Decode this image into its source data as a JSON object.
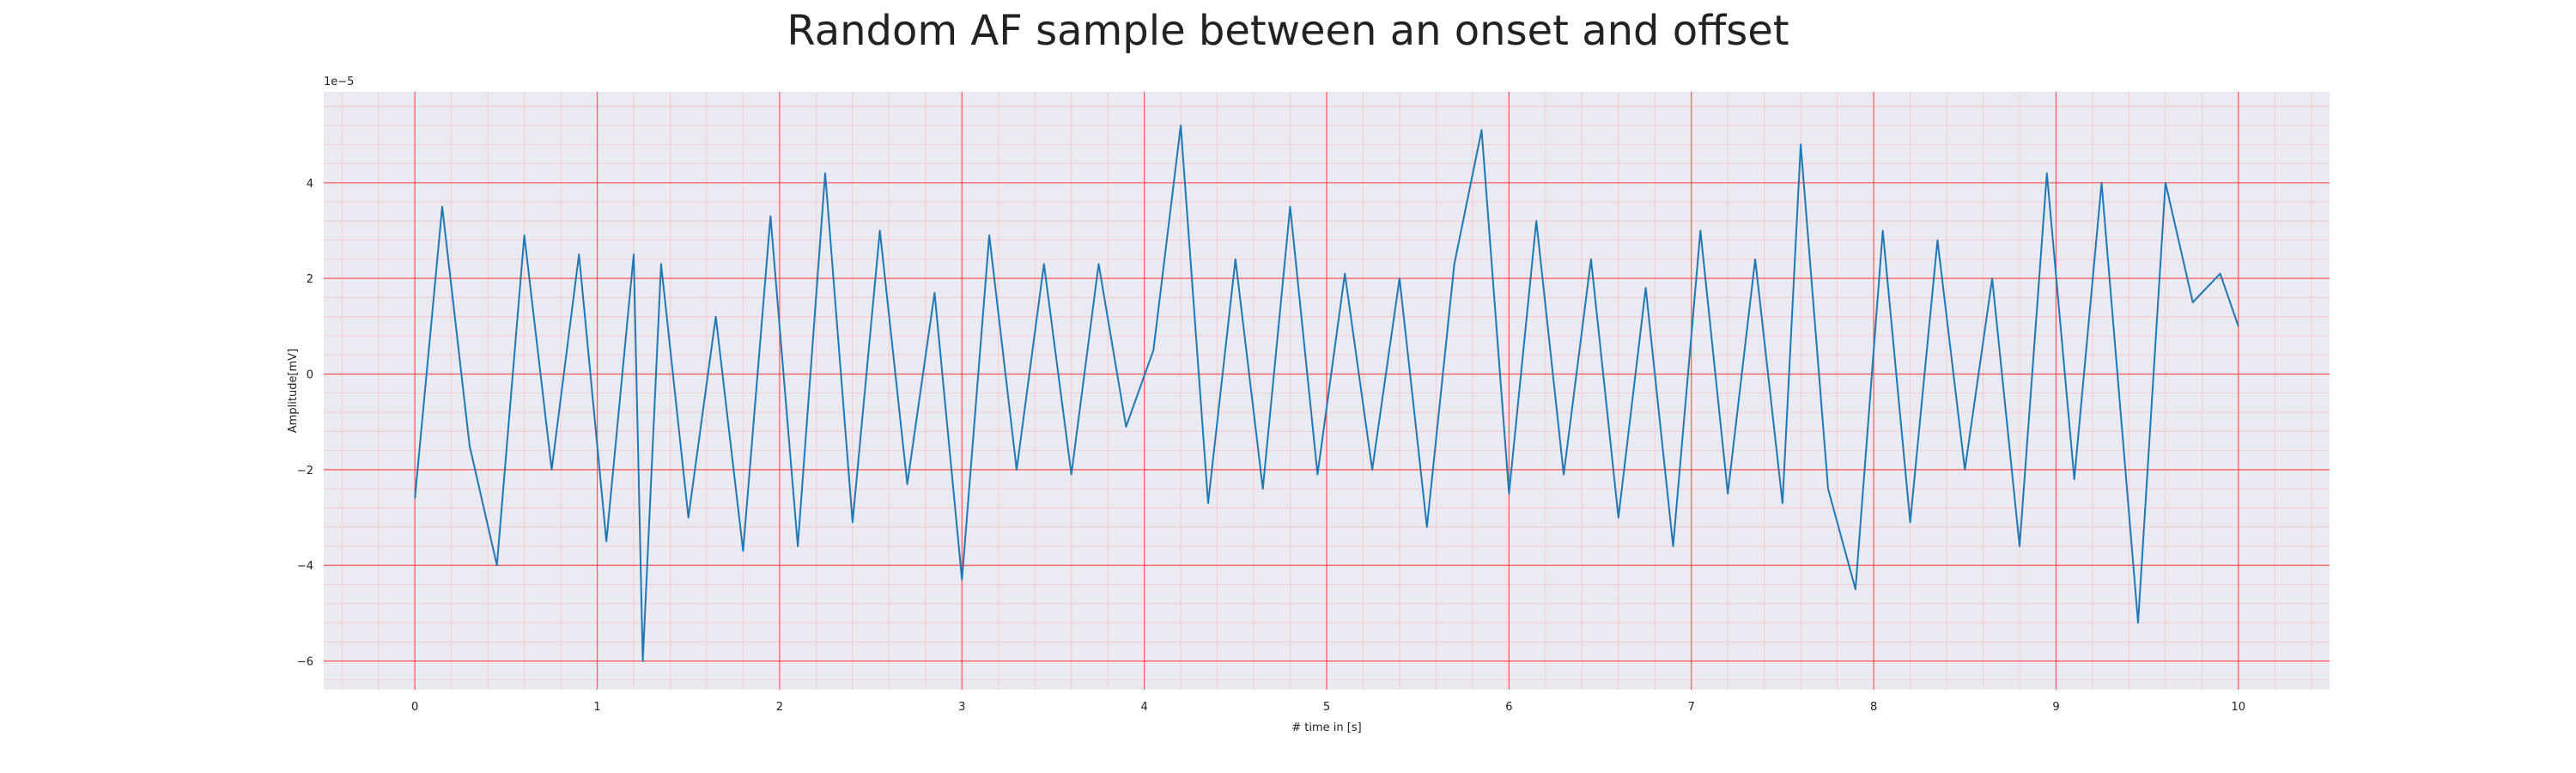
{
  "chart_data": {
    "type": "line",
    "title": "Random AF sample between an onset and offset",
    "xlabel": "# time in [s]",
    "ylabel": "Amplitude[mV]",
    "offset_text": "1e−5",
    "xlim": [
      -0.5,
      10.5
    ],
    "ylim": [
      -6.6,
      5.9
    ],
    "xticks": [
      0,
      1,
      2,
      3,
      4,
      5,
      6,
      7,
      8,
      9,
      10
    ],
    "yticks": [
      -6,
      -4,
      -2,
      0,
      2,
      4
    ],
    "grid": true,
    "series": [
      {
        "x": [
          0.0,
          0.15,
          0.3,
          0.45,
          0.6,
          0.75,
          0.9,
          1.05,
          1.2,
          1.25,
          1.35,
          1.5,
          1.65,
          1.8,
          1.95,
          2.1,
          2.25,
          2.4,
          2.55,
          2.7,
          2.85,
          3.0,
          3.15,
          3.3,
          3.45,
          3.6,
          3.75,
          3.9,
          4.05,
          4.2,
          4.35,
          4.5,
          4.65,
          4.8,
          4.95,
          5.1,
          5.25,
          5.4,
          5.55,
          5.7,
          5.85,
          6.0,
          6.15,
          6.3,
          6.45,
          6.6,
          6.75,
          6.9,
          7.05,
          7.2,
          7.35,
          7.5,
          7.6,
          7.75,
          7.9,
          8.05,
          8.2,
          8.35,
          8.5,
          8.65,
          8.8,
          8.95,
          9.1,
          9.25,
          9.45,
          9.6,
          9.75,
          9.9,
          10.0
        ],
        "values": [
          -2.6,
          3.5,
          -1.5,
          -4.0,
          2.9,
          -2.0,
          2.5,
          -3.5,
          2.5,
          -6.0,
          2.3,
          -3.0,
          1.2,
          -3.7,
          3.3,
          -3.6,
          4.2,
          -3.1,
          3.0,
          -2.3,
          1.7,
          -4.3,
          2.9,
          -2.0,
          2.3,
          -2.1,
          2.3,
          -1.1,
          0.5,
          5.2,
          -2.7,
          2.4,
          -2.4,
          3.5,
          -2.1,
          2.1,
          -2.0,
          2.0,
          -3.2,
          2.3,
          5.1,
          -2.5,
          3.2,
          -2.1,
          2.4,
          -3.0,
          1.8,
          -3.6,
          3.0,
          -2.5,
          2.4,
          -2.7,
          4.8,
          -2.4,
          -4.5,
          3.0,
          -3.1,
          2.8,
          -2.0,
          2.0,
          -3.6,
          4.2,
          -2.2,
          4.0,
          -5.2,
          4.0,
          1.5,
          2.1,
          1.0
        ]
      }
    ]
  },
  "colors": {
    "line": "#1f77b4",
    "plot_background": "#eaeaf2",
    "major_grid": "#ff4040",
    "minor_grid": "#ffb3b3"
  }
}
